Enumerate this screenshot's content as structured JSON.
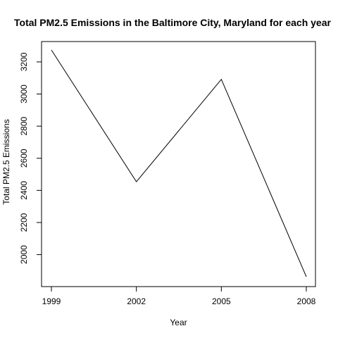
{
  "chart_data": {
    "type": "line",
    "title": "Total PM2.5 Emissions in the Baltimore City, Maryland for each year",
    "xlabel": "Year",
    "ylabel": "Total PM2.5 Emissions",
    "x": [
      1999,
      2002,
      2005,
      2008
    ],
    "series": [
      {
        "values": [
          3274.18,
          2453.92,
          3091.35,
          1862.28
        ]
      }
    ],
    "xticks": [
      "1999",
      "2002",
      "2005",
      "2008"
    ],
    "yticks": [
      "2000",
      "2200",
      "2400",
      "2600",
      "2800",
      "3000",
      "3200"
    ],
    "xlim": [
      1999,
      2008
    ],
    "ylim": [
      1862.28,
      3274.18
    ],
    "grid": false,
    "line_color": "#000000"
  }
}
